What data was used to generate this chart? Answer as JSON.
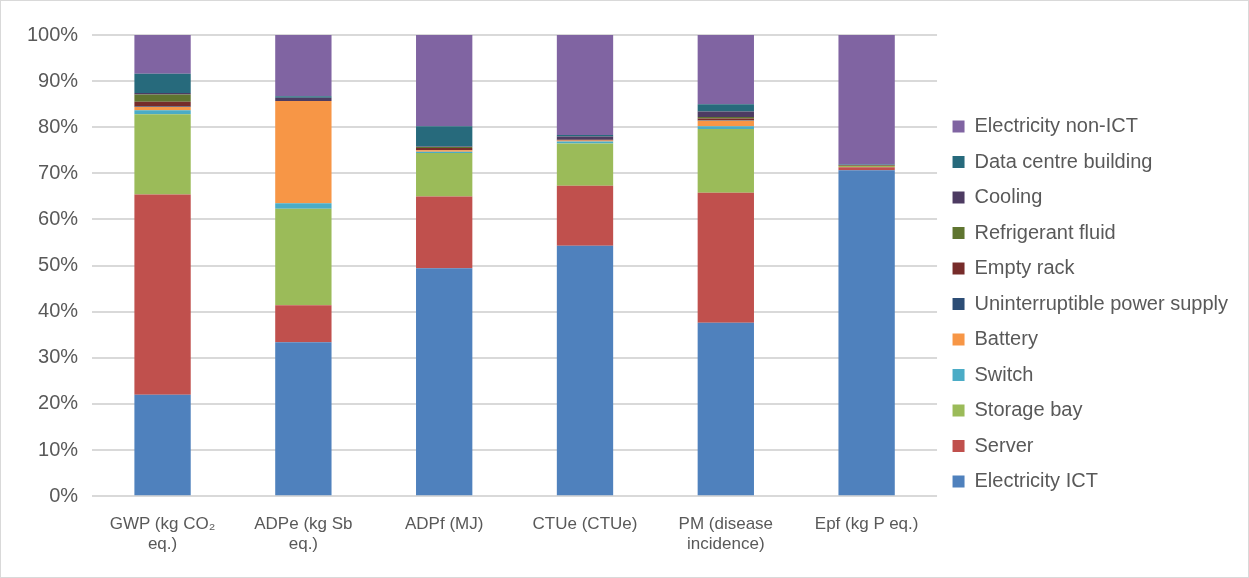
{
  "chart_data": {
    "type": "bar",
    "stacked": true,
    "categories": [
      "GWP (kg CO₂ eq.)",
      "ADPe (kg Sb eq.)",
      "ADPf (MJ)",
      "CTUe (CTUe)",
      "PM (disease incidence)",
      "Epf (kg P eq.)"
    ],
    "series": [
      {
        "name": "Electricity ICT",
        "color": "#4f81bd",
        "values": [
          22.0,
          33.4,
          49.4,
          54.3,
          37.6,
          70.7
        ]
      },
      {
        "name": "Server",
        "color": "#c0504d",
        "values": [
          43.4,
          8.0,
          15.6,
          13.0,
          28.2,
          0.6
        ]
      },
      {
        "name": "Storage bay",
        "color": "#9bbb59",
        "values": [
          17.4,
          20.9,
          9.4,
          9.2,
          13.8,
          0.3
        ]
      },
      {
        "name": "Switch",
        "color": "#4bacc6",
        "values": [
          0.9,
          1.2,
          0.3,
          0.4,
          0.6,
          0.0
        ]
      },
      {
        "name": "Battery",
        "color": "#f79646",
        "values": [
          0.7,
          22.2,
          0.3,
          0.2,
          1.2,
          0.0
        ]
      },
      {
        "name": "Uninterruptible power supply",
        "color": "#2c4d75",
        "values": [
          0.1,
          0.0,
          0.0,
          0.0,
          0.1,
          0.0
        ]
      },
      {
        "name": "Empty rack",
        "color": "#772c2a",
        "values": [
          1.0,
          0.0,
          0.5,
          0.2,
          0.4,
          0.1
        ]
      },
      {
        "name": "Refrigerant fluid",
        "color": "#5f7530",
        "values": [
          1.6,
          0.0,
          0.2,
          0.0,
          0.3,
          0.1
        ]
      },
      {
        "name": "Cooling",
        "color": "#4d3b62",
        "values": [
          0.3,
          0.7,
          0.1,
          0.7,
          1.2,
          0.0
        ]
      },
      {
        "name": "Data centre building",
        "color": "#276a7c",
        "values": [
          4.2,
          0.3,
          4.4,
          0.3,
          1.6,
          0.1
        ]
      },
      {
        "name": "Electricity non-ICT",
        "color": "#8064a2",
        "values": [
          8.4,
          13.3,
          19.8,
          21.7,
          15.0,
          28.1
        ]
      }
    ],
    "ylim": [
      0,
      100
    ],
    "yticks": [
      {
        "value": 0,
        "label": "0%"
      },
      {
        "value": 10,
        "label": "10%"
      },
      {
        "value": 20,
        "label": "20%"
      },
      {
        "value": 30,
        "label": "30%"
      },
      {
        "value": 40,
        "label": "40%"
      },
      {
        "value": 50,
        "label": "50%"
      },
      {
        "value": 60,
        "label": "60%"
      },
      {
        "value": 70,
        "label": "70%"
      },
      {
        "value": 80,
        "label": "80%"
      },
      {
        "value": 90,
        "label": "90%"
      },
      {
        "value": 100,
        "label": "100%"
      }
    ],
    "grid": "y",
    "legend": "right"
  }
}
